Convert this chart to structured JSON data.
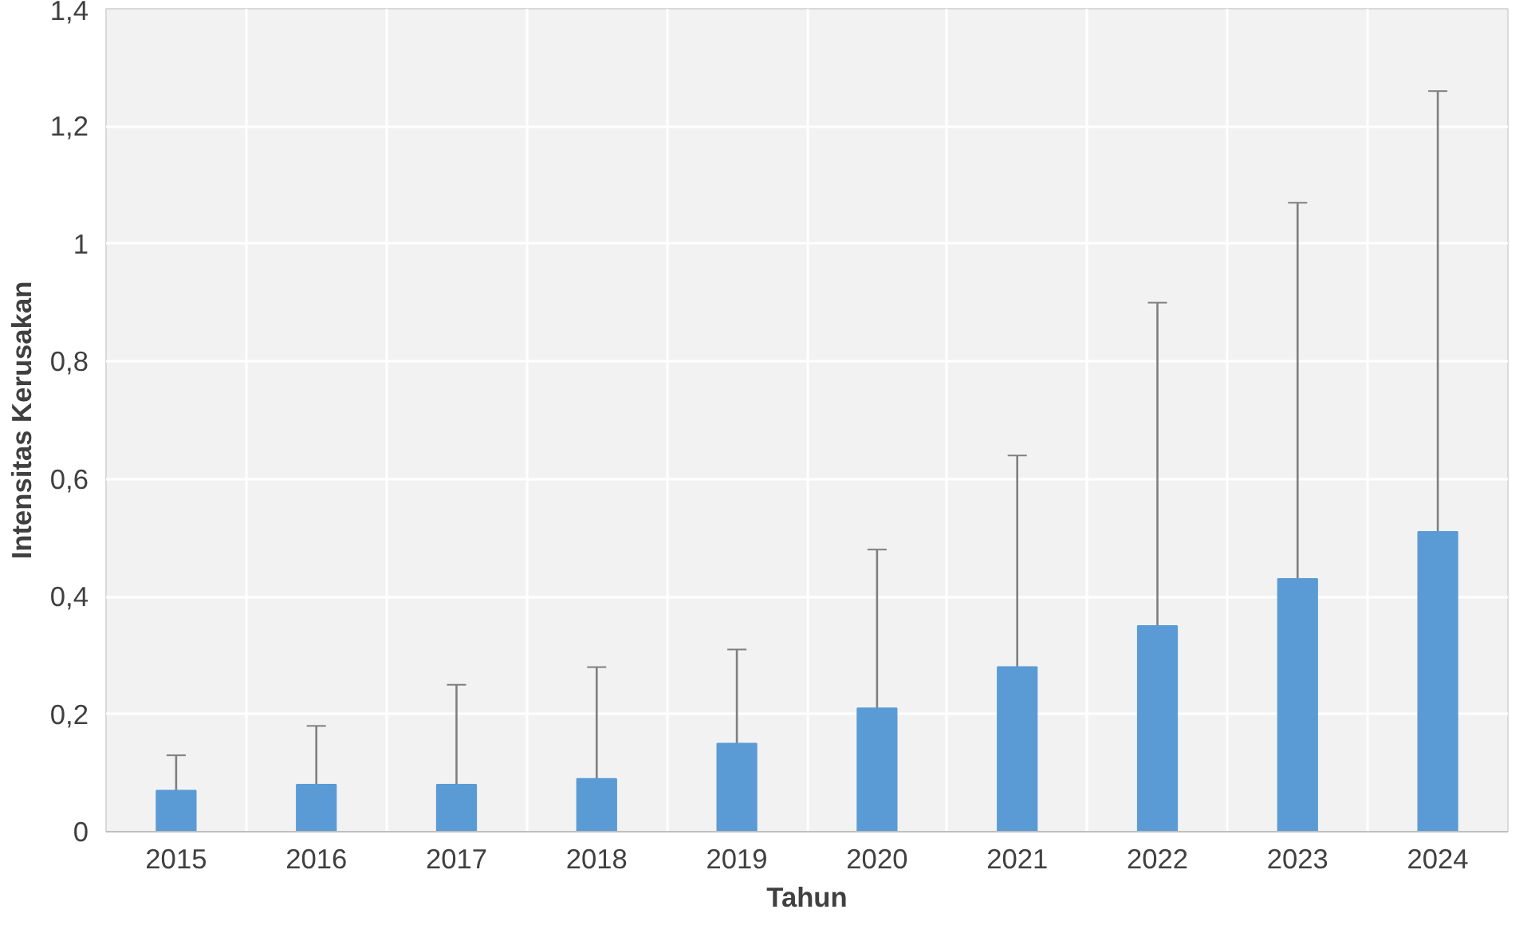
{
  "chart_data": {
    "type": "bar",
    "xlabel": "Tahun",
    "ylabel": "Intensitas Kerusakan",
    "categories": [
      "2015",
      "2016",
      "2017",
      "2018",
      "2019",
      "2020",
      "2021",
      "2022",
      "2023",
      "2024"
    ],
    "values": [
      0.07,
      0.08,
      0.08,
      0.09,
      0.15,
      0.21,
      0.28,
      0.35,
      0.43,
      0.51
    ],
    "errors": [
      [
        0.07,
        0.13
      ],
      [
        0.08,
        0.18
      ],
      [
        0.08,
        0.25
      ],
      [
        0.09,
        0.28
      ],
      [
        0.15,
        0.31
      ],
      [
        0.21,
        0.48
      ],
      [
        0.28,
        0.64
      ],
      [
        0.35,
        0.9
      ],
      [
        0.43,
        1.07
      ],
      [
        0.51,
        1.26
      ]
    ],
    "color": "#5b9bd5",
    "ylim": [
      0,
      1.4
    ],
    "yticks": [
      0,
      {
        "value": 0.2,
        "label": "0,2"
      },
      {
        "value": 0.4,
        "label": "0,4"
      },
      {
        "value": 0.6,
        "label": "0,6"
      },
      {
        "value": 0.8,
        "label": "0,8"
      },
      1,
      {
        "value": 1.2,
        "label": "1,2"
      },
      {
        "value": 1.4,
        "label": "1,4"
      }
    ],
    "grid": true
  }
}
